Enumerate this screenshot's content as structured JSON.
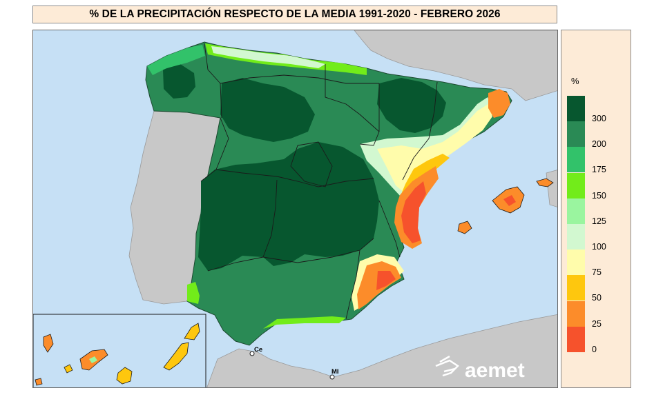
{
  "title": "% DE LA PRECIPITACIÓN RESPECTO DE LA MEDIA 1991-2020 - FEBRERO 2026",
  "legend": {
    "unit": "%",
    "ticks": [
      "300",
      "200",
      "175",
      "150",
      "125",
      "100",
      "75",
      "50",
      "25",
      "0"
    ],
    "colors": [
      "#07572f",
      "#2a8a55",
      "#32c26a",
      "#72ec1a",
      "#9af59f",
      "#d2f8d0",
      "#fffcab",
      "#fec70e",
      "#fc8c2a",
      "#f6522c"
    ]
  },
  "map": {
    "sea_color": "#c6e0f5",
    "land_other_color": "#c8c8c8",
    "labels": {
      "ceuta": "Ce",
      "melilla": "MI"
    },
    "logo_text": "aemet"
  }
}
